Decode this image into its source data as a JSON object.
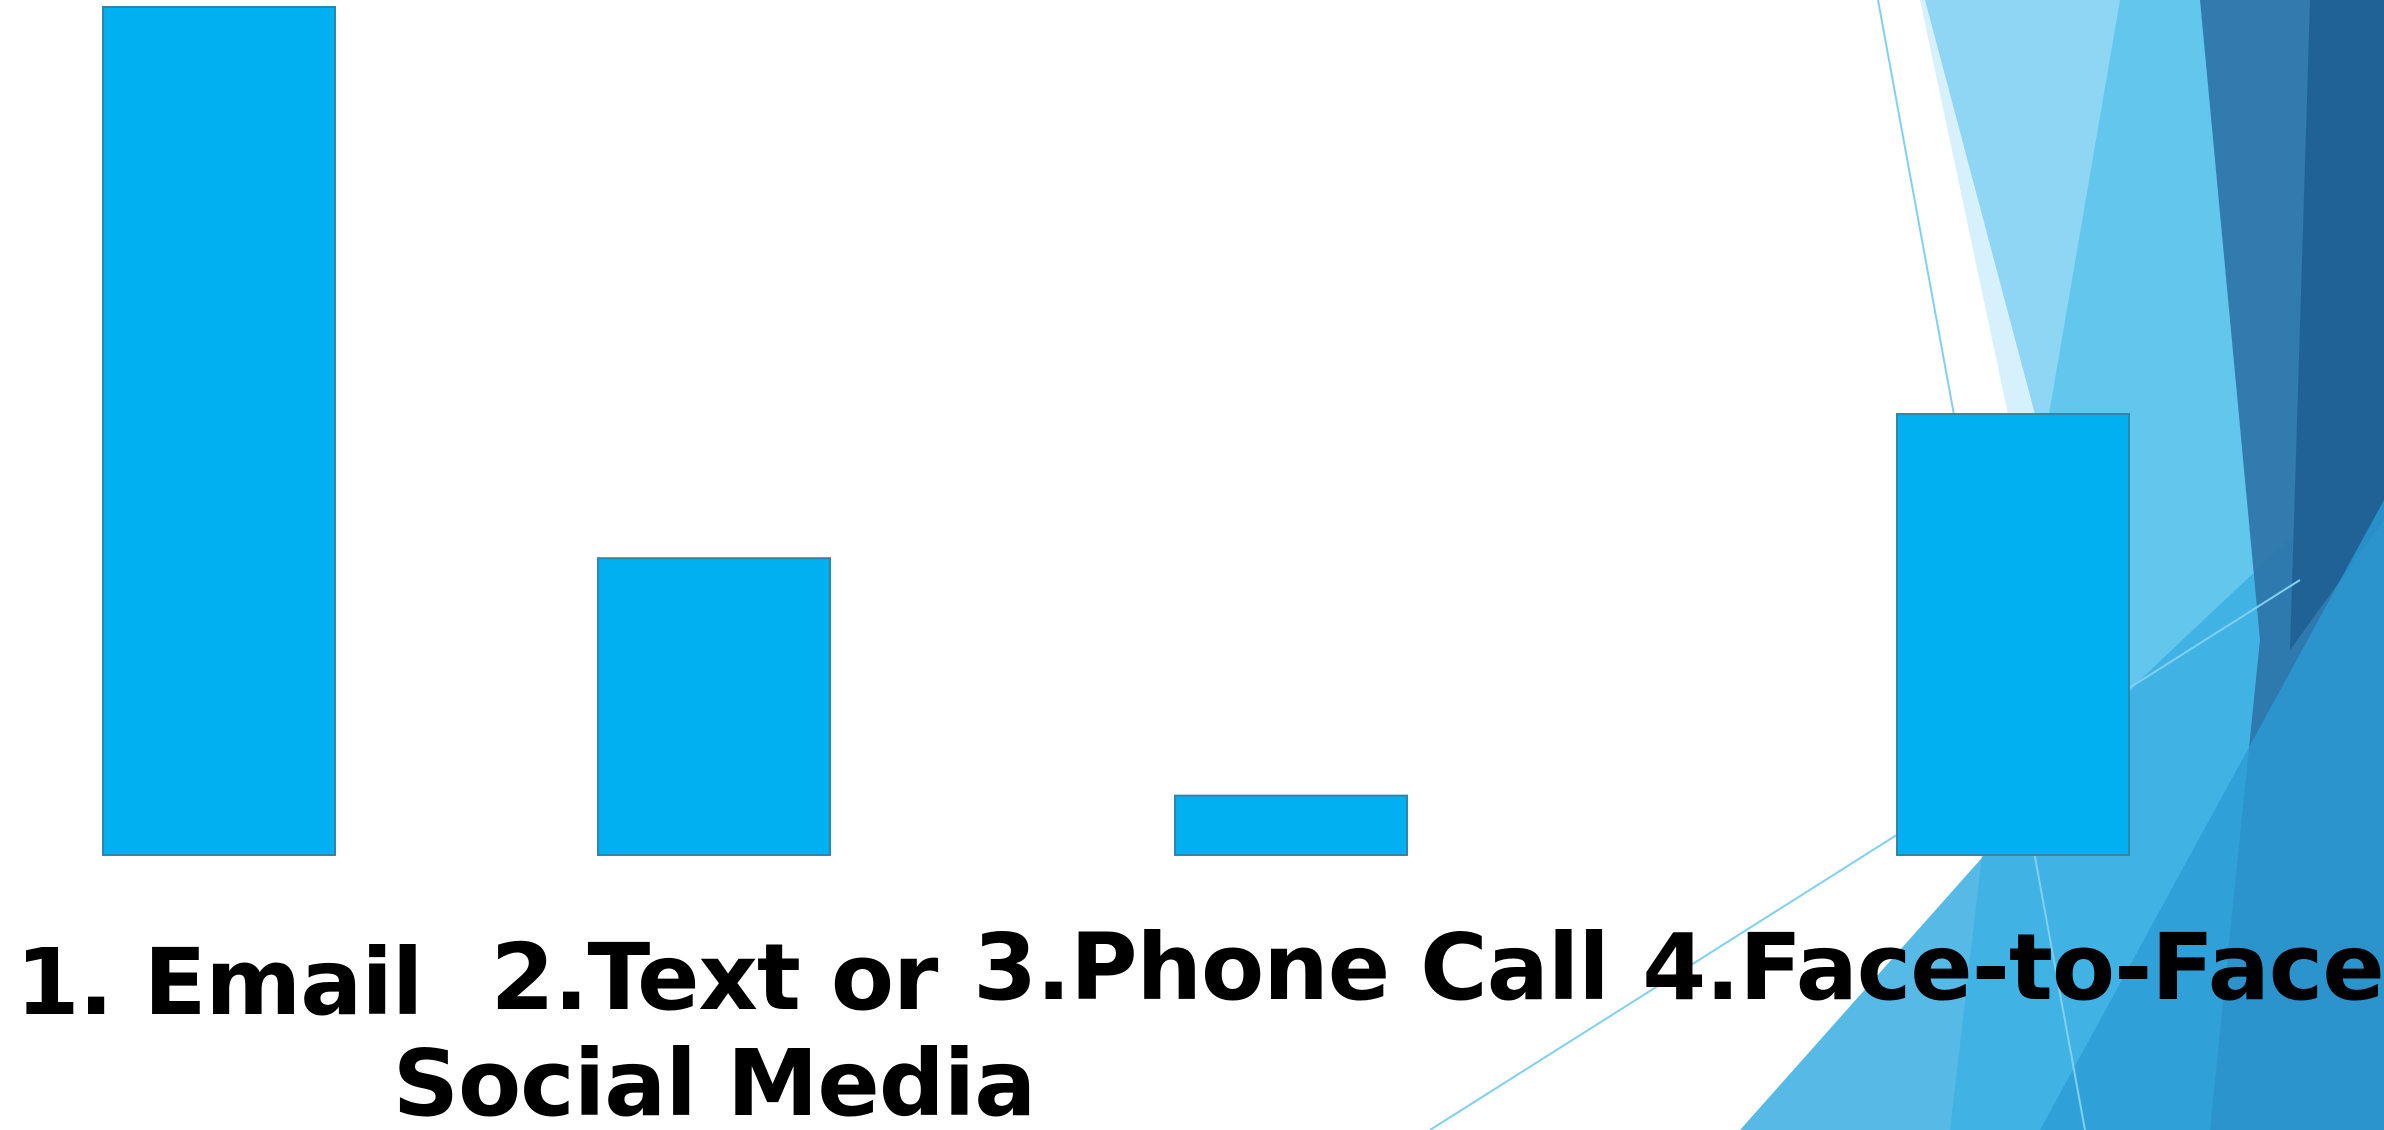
{
  "theme": {
    "bar_color": "#00b0f0",
    "bar_border": "#2e86a8",
    "label_color": "#000000",
    "background": "#ffffff",
    "decor_colors": [
      "#cfeefb",
      "#7fd0f2",
      "#5cc3ec",
      "#2b9fd6",
      "#2d74a8",
      "#1f5f94"
    ]
  },
  "chart_data": {
    "type": "bar",
    "categories": [
      "1. Email",
      "2.Text or Social Media",
      "3.Phone Call",
      "4.Face-to-Face"
    ],
    "category_lines": [
      [
        "1. Email"
      ],
      [
        "2.Text or",
        "Social Media"
      ],
      [
        "3.Phone Call"
      ],
      [
        "4.Face-to-Face"
      ]
    ],
    "values": [
      10,
      3.5,
      0.7,
      5.2
    ],
    "title": "",
    "xlabel": "",
    "ylabel": "",
    "ylim": [
      0,
      10
    ],
    "grid": false,
    "legend": "none"
  }
}
